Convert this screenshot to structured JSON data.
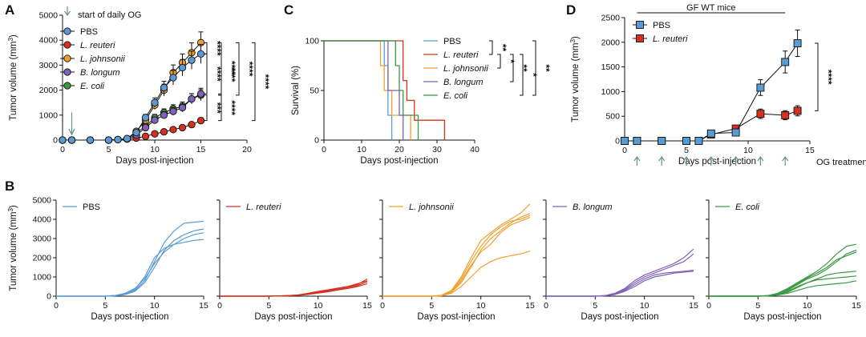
{
  "colors": {
    "PBS": "#5b9bd5",
    "L. reuteri": "#d7301f",
    "L. johnsonii": "#f0a030",
    "B. longum": "#8060b8",
    "E. coli": "#3a9a40"
  },
  "panel_labels": {
    "A": "A",
    "B": "B",
    "C": "C",
    "D": "D"
  },
  "chart_data": [
    {
      "id": "A",
      "type": "line",
      "xlabel": "Days post-injection",
      "ylabel": "Tumor volume (mm3)",
      "xlim": [
        0,
        20
      ],
      "ylim": [
        0,
        5000
      ],
      "xticks": [
        0,
        5,
        10,
        15,
        20
      ],
      "yticks": [
        0,
        1000,
        2000,
        3000,
        4000,
        5000
      ],
      "annotation": "start of daily OG",
      "x": [
        0,
        1,
        3,
        5,
        6,
        7,
        8,
        9,
        10,
        11,
        12,
        13,
        14,
        15
      ],
      "series": [
        {
          "name": "PBS",
          "marker": "circle",
          "values": [
            0,
            0,
            0,
            0,
            20,
            60,
            300,
            900,
            1500,
            2100,
            2500,
            2900,
            3200,
            3450
          ]
        },
        {
          "name": "L. reuteri",
          "marker": "circle",
          "values": [
            0,
            0,
            0,
            0,
            20,
            40,
            80,
            150,
            250,
            330,
            420,
            500,
            620,
            780
          ]
        },
        {
          "name": "L. johnsonii",
          "marker": "circle",
          "values": [
            0,
            0,
            0,
            0,
            20,
            60,
            350,
            800,
            1400,
            2000,
            2700,
            3100,
            3500,
            3900
          ]
        },
        {
          "name": "B. longum",
          "marker": "circle",
          "values": [
            0,
            0,
            0,
            0,
            20,
            50,
            200,
            500,
            800,
            1000,
            1150,
            1300,
            1650,
            1850
          ]
        },
        {
          "name": "E. coli",
          "marker": "circle",
          "values": [
            0,
            0,
            0,
            0,
            20,
            50,
            300,
            550,
            900,
            1100,
            1250,
            1350,
            1650,
            1800
          ]
        }
      ],
      "significance": [
        "****",
        "****",
        "****",
        "****",
        "****",
        "****",
        "***",
        "****"
      ]
    },
    {
      "id": "C",
      "type": "line",
      "xlabel": "Days post-injection",
      "ylabel": "Survival (%)",
      "xlim": [
        0,
        40
      ],
      "ylim": [
        0,
        100
      ],
      "xticks": [
        0,
        10,
        20,
        30,
        40
      ],
      "yticks": [
        0,
        50,
        100
      ],
      "series": [
        {
          "name": "PBS",
          "steps": [
            [
              0,
              100
            ],
            [
              16,
              100
            ],
            [
              16,
              75
            ],
            [
              17,
              75
            ],
            [
              17,
              25
            ],
            [
              18,
              25
            ],
            [
              18,
              0
            ]
          ]
        },
        {
          "name": "L. reuteri",
          "steps": [
            [
              0,
              100
            ],
            [
              21,
              100
            ],
            [
              21,
              60
            ],
            [
              22,
              60
            ],
            [
              22,
              40
            ],
            [
              24,
              40
            ],
            [
              24,
              20
            ],
            [
              32,
              20
            ],
            [
              32,
              0
            ]
          ]
        },
        {
          "name": "L. johnsonii",
          "steps": [
            [
              0,
              100
            ],
            [
              15,
              100
            ],
            [
              15,
              75
            ],
            [
              16,
              75
            ],
            [
              16,
              50
            ],
            [
              18,
              50
            ],
            [
              18,
              25
            ],
            [
              23,
              25
            ],
            [
              23,
              0
            ]
          ]
        },
        {
          "name": "B. longum",
          "steps": [
            [
              0,
              100
            ],
            [
              17,
              100
            ],
            [
              17,
              50
            ],
            [
              20,
              50
            ],
            [
              20,
              25
            ],
            [
              21,
              25
            ],
            [
              21,
              0
            ]
          ]
        },
        {
          "name": "E. coli",
          "steps": [
            [
              0,
              100
            ],
            [
              19,
              100
            ],
            [
              19,
              75
            ],
            [
              20,
              75
            ],
            [
              20,
              50
            ],
            [
              21,
              50
            ],
            [
              21,
              25
            ],
            [
              25,
              25
            ],
            [
              25,
              0
            ]
          ]
        }
      ],
      "significance": [
        "**",
        "*",
        "**",
        "*",
        "**"
      ]
    },
    {
      "id": "D",
      "type": "line",
      "title": "GF WT mice",
      "xlabel": "Days post-injection",
      "ylabel": "Tumor volume (mm3)",
      "xlim": [
        0,
        15
      ],
      "ylim": [
        0,
        2500
      ],
      "xticks": [
        0,
        5,
        10,
        15
      ],
      "yticks": [
        0,
        500,
        1000,
        1500,
        2000,
        2500
      ],
      "treatment_label": "OG treatments",
      "treatment_days": [
        1,
        3,
        5,
        7,
        9,
        11,
        13
      ],
      "x": [
        0,
        1,
        3,
        5,
        6,
        7,
        9,
        11,
        13,
        14
      ],
      "series": [
        {
          "name": "PBS",
          "marker": "square",
          "values": [
            0,
            0,
            0,
            0,
            0,
            150,
            170,
            1080,
            1600,
            1980
          ]
        },
        {
          "name": "L. reuteri",
          "marker": "square",
          "values": [
            0,
            0,
            0,
            0,
            0,
            130,
            250,
            550,
            520,
            610
          ]
        }
      ],
      "significance": [
        "****"
      ]
    },
    {
      "id": "B",
      "type": "line",
      "xlabel": "Days post-injection",
      "ylabel": "Tumor volume (mm3)",
      "xlim": [
        0,
        15
      ],
      "ylim": [
        0,
        5000
      ],
      "xticks": [
        0,
        5,
        10,
        15
      ],
      "yticks": [
        0,
        1000,
        2000,
        3000,
        4000,
        5000
      ],
      "x": [
        0,
        5,
        6,
        7,
        8,
        9,
        10,
        11,
        12,
        13,
        14,
        15
      ],
      "panels": [
        {
          "name": "PBS",
          "curves": [
            [
              0,
              0,
              30,
              100,
              300,
              800,
              1800,
              2800,
              3400,
              3800,
              3850,
              3900
            ],
            [
              0,
              0,
              20,
              80,
              250,
              700,
              1500,
              2400,
              2900,
              3200,
              3400,
              3500
            ],
            [
              0,
              0,
              40,
              150,
              400,
              900,
              1700,
              2300,
              2700,
              3000,
              3200,
              3300
            ],
            [
              0,
              0,
              30,
              100,
              350,
              1000,
              2000,
              2500,
              2700,
              2800,
              2900,
              2950
            ]
          ]
        },
        {
          "name": "L. reuteri",
          "curves": [
            [
              0,
              0,
              10,
              30,
              60,
              120,
              200,
              300,
              400,
              500,
              600,
              900
            ],
            [
              0,
              0,
              10,
              20,
              50,
              100,
              180,
              260,
              350,
              450,
              550,
              750
            ],
            [
              0,
              0,
              10,
              30,
              70,
              150,
              250,
              330,
              420,
              500,
              650,
              800
            ],
            [
              0,
              0,
              10,
              20,
              40,
              90,
              160,
              230,
              320,
              400,
              500,
              650
            ]
          ]
        },
        {
          "name": "L. johnsonii",
          "curves": [
            [
              0,
              0,
              50,
              300,
              1000,
              2000,
              2900,
              3300,
              3700,
              4000,
              4300,
              4800
            ],
            [
              0,
              0,
              30,
              200,
              700,
              1500,
              2400,
              3000,
              3400,
              3800,
              4100,
              4300
            ],
            [
              0,
              0,
              40,
              250,
              900,
              1800,
              2600,
              3200,
              3600,
              3900,
              4000,
              4200
            ],
            [
              0,
              0,
              20,
              150,
              500,
              1000,
              1500,
              1800,
              2000,
              2100,
              2200,
              2350
            ],
            [
              0,
              0,
              30,
              200,
              800,
              1600,
              2300,
              2700,
              3300,
              3700,
              3900,
              4100
            ]
          ]
        },
        {
          "name": "B. longum",
          "curves": [
            [
              0,
              0,
              30,
              150,
              400,
              800,
              1100,
              1300,
              1500,
              1700,
              2000,
              2450
            ],
            [
              0,
              0,
              20,
              100,
              300,
              600,
              900,
              1100,
              1200,
              1250,
              1300,
              1350
            ],
            [
              0,
              0,
              30,
              150,
              350,
              700,
              1000,
              1200,
              1400,
              1600,
              1800,
              2200
            ],
            [
              0,
              0,
              20,
              80,
              250,
              500,
              800,
              1000,
              1100,
              1200,
              1250,
              1300
            ]
          ]
        },
        {
          "name": "E. coli",
          "curves": [
            [
              0,
              0,
              30,
              150,
              400,
              700,
              1000,
              1300,
              1700,
              2200,
              2600,
              2700
            ],
            [
              0,
              0,
              20,
              100,
              300,
              600,
              900,
              1100,
              1400,
              1800,
              2200,
              2400
            ],
            [
              0,
              0,
              30,
              150,
              350,
              650,
              950,
              1200,
              1500,
              1900,
              2100,
              2300
            ],
            [
              0,
              0,
              20,
              80,
              200,
              450,
              700,
              850,
              900,
              950,
              1000,
              1050
            ],
            [
              0,
              0,
              20,
              100,
              250,
              500,
              700,
              900,
              1100,
              1200,
              1250,
              1300
            ],
            [
              0,
              0,
              10,
              60,
              150,
              300,
              450,
              550,
              600,
              650,
              700,
              800
            ]
          ]
        }
      ]
    }
  ]
}
